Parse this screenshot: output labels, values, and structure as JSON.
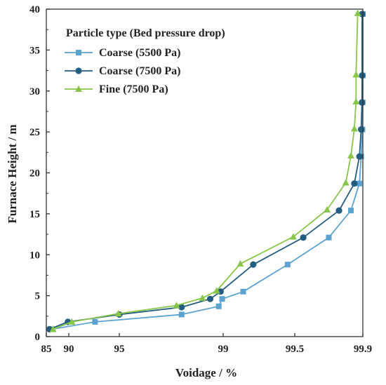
{
  "chart_data": {
    "type": "line",
    "title": "",
    "xlabel": "Voidage / %",
    "ylabel": "Furnace Height / m",
    "x_scale": "categorical-ticks",
    "x_ticks": [
      "85",
      "90",
      "95",
      "99",
      "99.5",
      "99.9"
    ],
    "x_tick_values": [
      85,
      90,
      95,
      99,
      99.5,
      99.9
    ],
    "ylim": [
      0,
      40
    ],
    "y_ticks": [
      "0",
      "5",
      "10",
      "15",
      "20",
      "25",
      "30",
      "35",
      "40"
    ],
    "grid": false,
    "legend": {
      "title": "Particle type (Bed pressure drop)",
      "position": "top-left"
    },
    "series": [
      {
        "name": "Coarse (5500 Pa)",
        "color": "#5ba3d0",
        "marker": "square",
        "points": [
          {
            "x": 86.2,
            "y": 0.9
          },
          {
            "x": 92.6,
            "y": 1.8
          },
          {
            "x": 97.4,
            "y": 2.7
          },
          {
            "x": 98.83,
            "y": 3.7
          },
          {
            "x": 98.96,
            "y": 4.6
          },
          {
            "x": 99.14,
            "y": 5.5
          },
          {
            "x": 99.45,
            "y": 8.8
          },
          {
            "x": 99.7,
            "y": 12.1
          },
          {
            "x": 99.83,
            "y": 15.4
          },
          {
            "x": 99.88,
            "y": 18.7
          },
          {
            "x": 99.89,
            "y": 22.0
          },
          {
            "x": 99.898,
            "y": 25.3
          },
          {
            "x": 99.899,
            "y": 28.6
          },
          {
            "x": 99.9,
            "y": 31.9
          },
          {
            "x": 99.9,
            "y": 39.4
          }
        ]
      },
      {
        "name": "Coarse (7500 Pa)",
        "color": "#235d80",
        "marker": "circle",
        "points": [
          {
            "x": 85.7,
            "y": 0.9
          },
          {
            "x": 89.8,
            "y": 1.8
          },
          {
            "x": 95.0,
            "y": 2.7
          },
          {
            "x": 97.4,
            "y": 3.6
          },
          {
            "x": 98.5,
            "y": 4.6
          },
          {
            "x": 98.9,
            "y": 5.5
          },
          {
            "x": 99.21,
            "y": 8.8
          },
          {
            "x": 99.55,
            "y": 12.1
          },
          {
            "x": 99.76,
            "y": 15.4
          },
          {
            "x": 99.85,
            "y": 18.7
          },
          {
            "x": 99.88,
            "y": 22.0
          },
          {
            "x": 99.89,
            "y": 25.3
          },
          {
            "x": 99.895,
            "y": 28.6
          },
          {
            "x": 99.896,
            "y": 31.9
          },
          {
            "x": 99.896,
            "y": 39.4
          }
        ]
      },
      {
        "name": "Fine  (7500 Pa)",
        "color": "#88c64a",
        "marker": "triangle",
        "points": [
          {
            "x": 86.5,
            "y": 0.9
          },
          {
            "x": 90.3,
            "y": 1.8
          },
          {
            "x": 94.9,
            "y": 2.8
          },
          {
            "x": 97.2,
            "y": 3.8
          },
          {
            "x": 98.2,
            "y": 4.7
          },
          {
            "x": 98.75,
            "y": 5.6
          },
          {
            "x": 99.12,
            "y": 8.9
          },
          {
            "x": 99.49,
            "y": 12.2
          },
          {
            "x": 99.69,
            "y": 15.5
          },
          {
            "x": 99.8,
            "y": 18.8
          },
          {
            "x": 99.83,
            "y": 22.1
          },
          {
            "x": 99.85,
            "y": 25.4
          },
          {
            "x": 99.86,
            "y": 28.7
          },
          {
            "x": 99.86,
            "y": 32.0
          },
          {
            "x": 99.87,
            "y": 39.5
          }
        ]
      }
    ]
  }
}
